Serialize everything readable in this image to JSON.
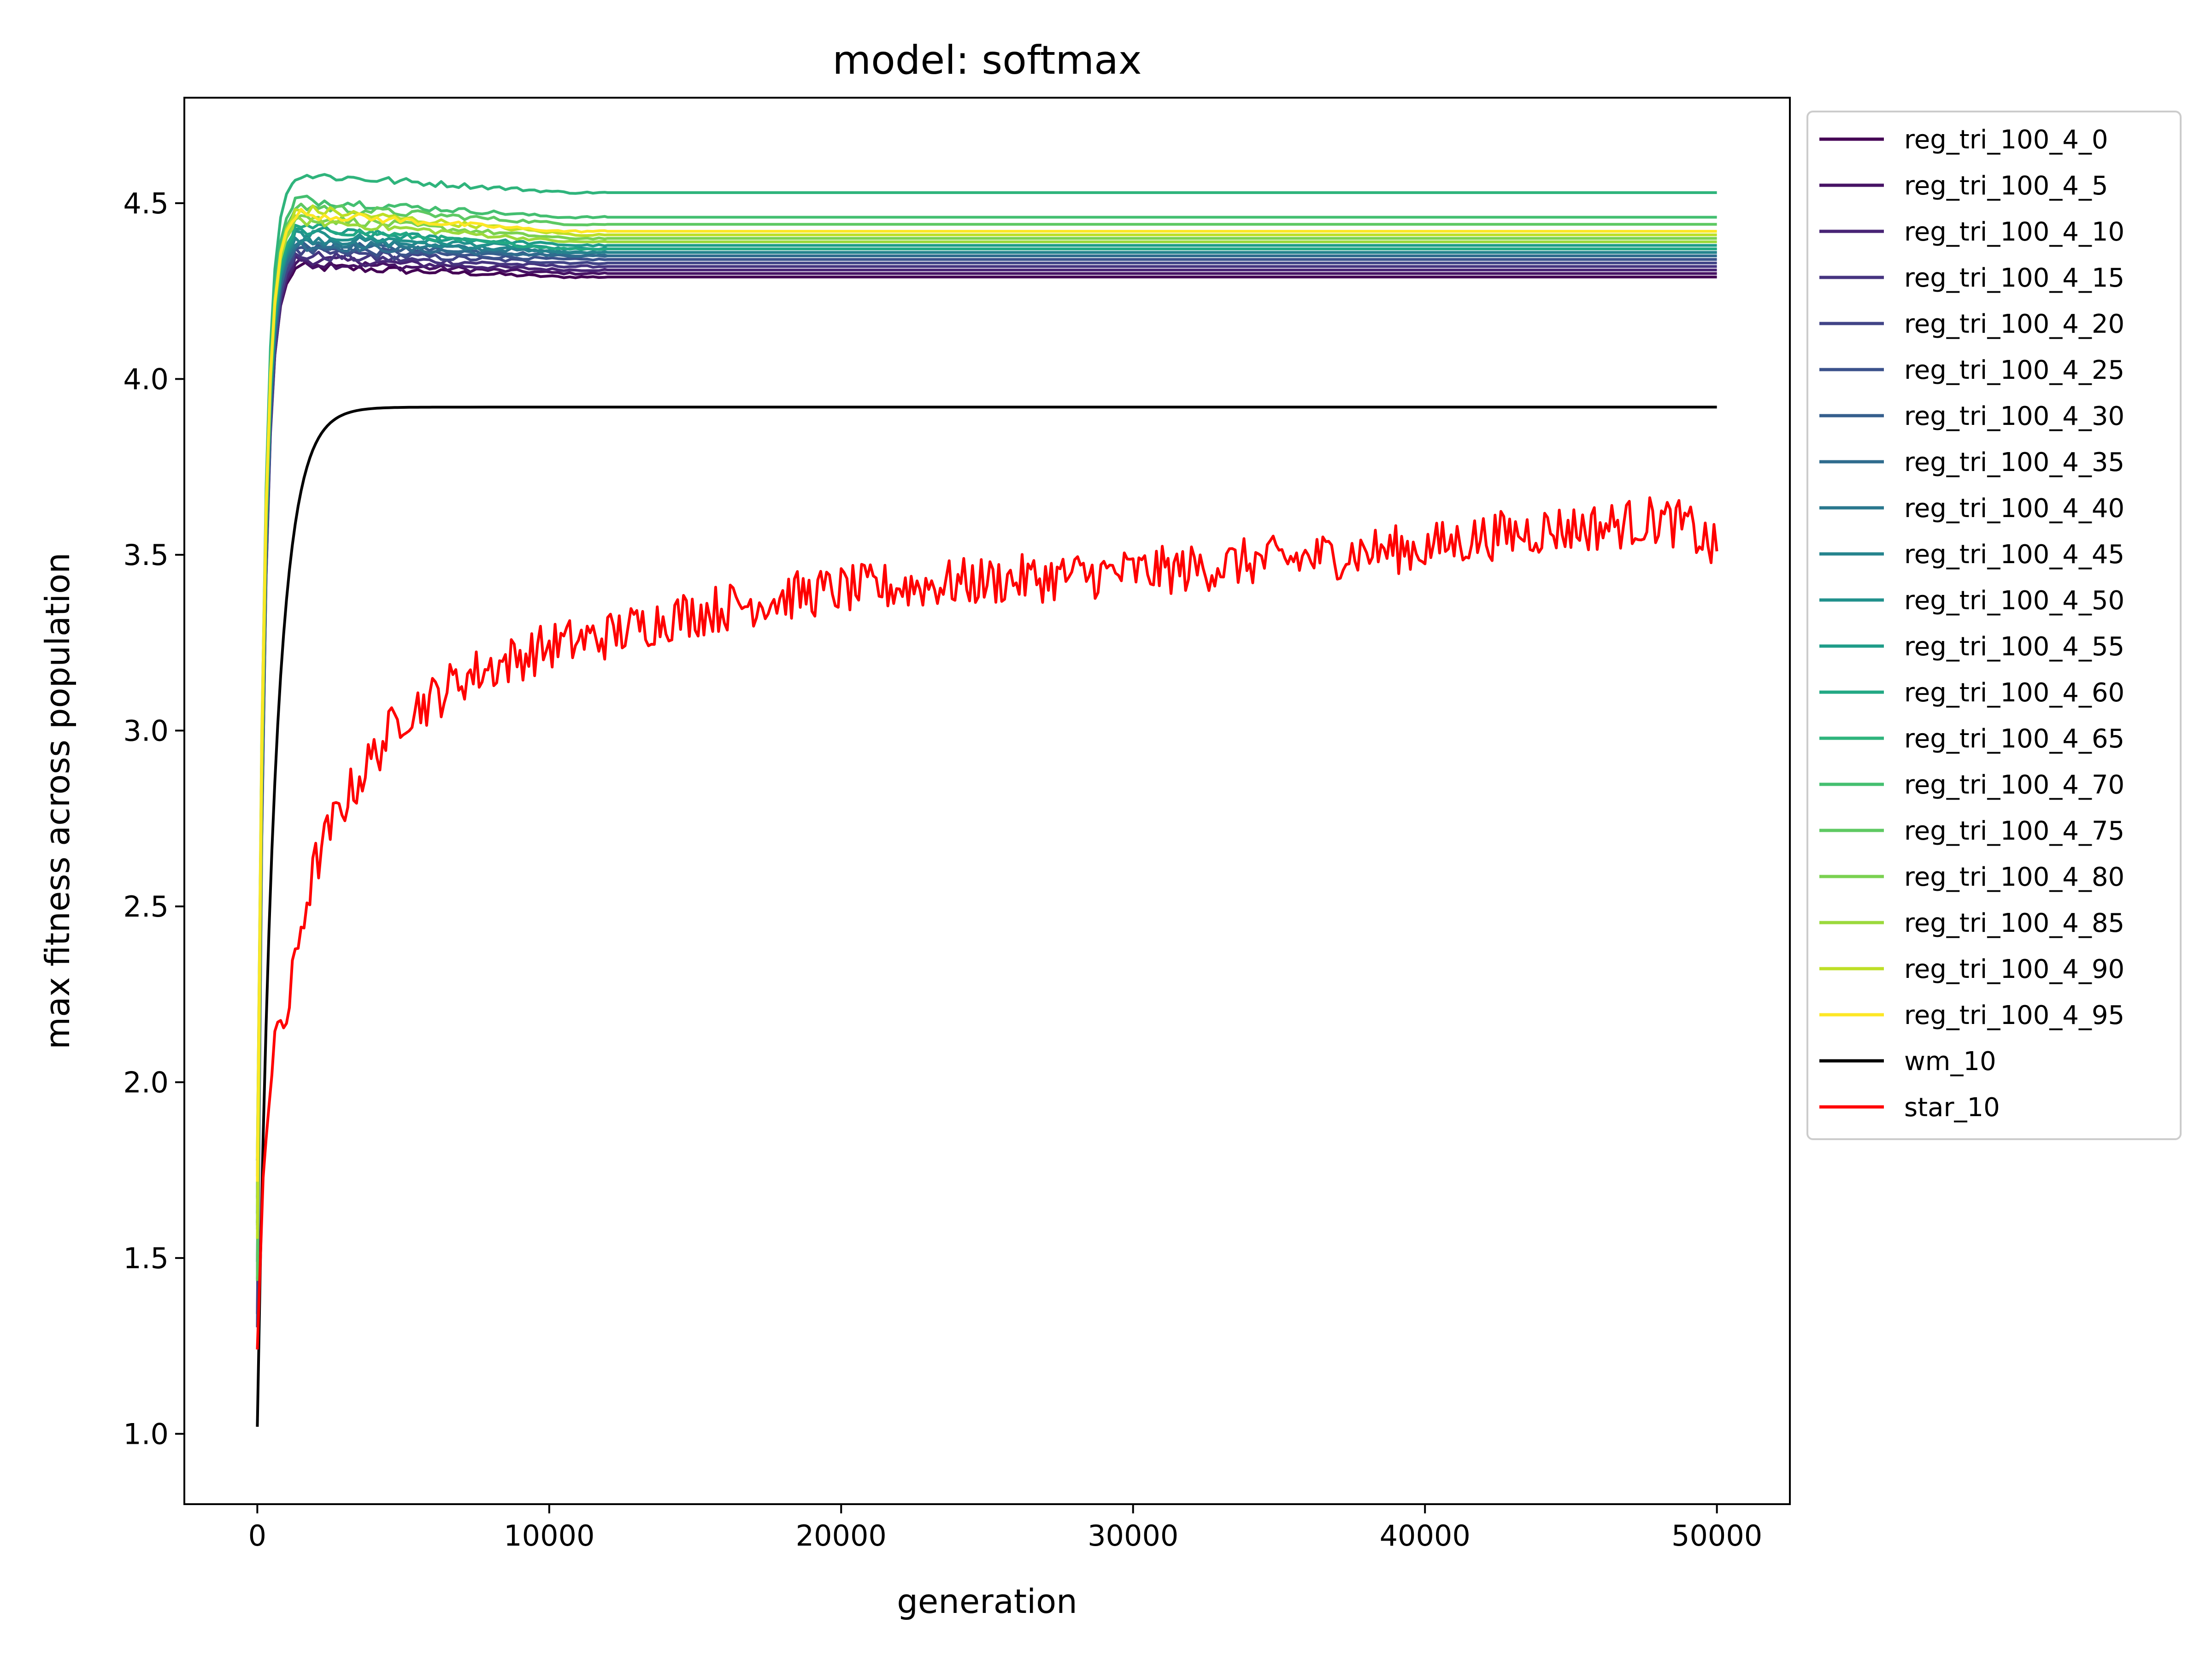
{
  "chart_data": {
    "type": "line",
    "title": "model: softmax",
    "xlabel": "generation",
    "ylabel": "max fitness across population",
    "xlim": [
      -2500,
      52500
    ],
    "ylim": [
      0.8,
      4.8
    ],
    "xticks": [
      0,
      10000,
      20000,
      30000,
      40000,
      50000
    ],
    "xtick_labels": [
      "0",
      "10000",
      "20000",
      "30000",
      "40000",
      "50000"
    ],
    "yticks": [
      1.0,
      1.5,
      2.0,
      2.5,
      3.0,
      3.5,
      4.0,
      4.5
    ],
    "ytick_labels": [
      "1.0",
      "1.5",
      "2.0",
      "2.5",
      "3.0",
      "3.5",
      "4.0",
      "4.5"
    ],
    "grid": false,
    "legend_position": "outside-right",
    "series": [
      {
        "name": "reg_tri_100_4_0",
        "color": "#440154",
        "final": 4.29,
        "peak": 4.32,
        "peak_x": 1500
      },
      {
        "name": "reg_tri_100_4_5",
        "color": "#471365",
        "final": 4.3,
        "peak": 4.33,
        "peak_x": 1800
      },
      {
        "name": "reg_tri_100_4_10",
        "color": "#482475",
        "final": 4.31,
        "peak": 4.34,
        "peak_x": 1600
      },
      {
        "name": "reg_tri_100_4_15",
        "color": "#463480",
        "final": 4.32,
        "peak": 4.35,
        "peak_x": 1700
      },
      {
        "name": "reg_tri_100_4_20",
        "color": "#414487",
        "final": 4.33,
        "peak": 4.36,
        "peak_x": 1900
      },
      {
        "name": "reg_tri_100_4_25",
        "color": "#3b528b",
        "final": 4.34,
        "peak": 4.37,
        "peak_x": 1500
      },
      {
        "name": "reg_tri_100_4_30",
        "color": "#355f8d",
        "final": 4.35,
        "peak": 4.38,
        "peak_x": 2000
      },
      {
        "name": "reg_tri_100_4_35",
        "color": "#2f6c8e",
        "final": 4.35,
        "peak": 4.38,
        "peak_x": 1600
      },
      {
        "name": "reg_tri_100_4_40",
        "color": "#2a788e",
        "final": 4.36,
        "peak": 4.39,
        "peak_x": 1800
      },
      {
        "name": "reg_tri_100_4_45",
        "color": "#25848e",
        "final": 4.36,
        "peak": 4.4,
        "peak_x": 1700
      },
      {
        "name": "reg_tri_100_4_50",
        "color": "#21918c",
        "final": 4.37,
        "peak": 4.41,
        "peak_x": 1500
      },
      {
        "name": "reg_tri_100_4_55",
        "color": "#1e9c89",
        "final": 4.38,
        "peak": 4.42,
        "peak_x": 1900
      },
      {
        "name": "reg_tri_100_4_60",
        "color": "#22a884",
        "final": 4.37,
        "peak": 4.43,
        "peak_x": 1600
      },
      {
        "name": "reg_tri_100_4_65",
        "color": "#2fb47c",
        "final": 4.53,
        "peak": 4.58,
        "peak_x": 1700
      },
      {
        "name": "reg_tri_100_4_70",
        "color": "#44bf70",
        "final": 4.46,
        "peak": 4.51,
        "peak_x": 1500
      },
      {
        "name": "reg_tri_100_4_75",
        "color": "#5ec962",
        "final": 4.44,
        "peak": 4.49,
        "peak_x": 1800
      },
      {
        "name": "reg_tri_100_4_80",
        "color": "#7ad151",
        "final": 4.4,
        "peak": 4.46,
        "peak_x": 1600
      },
      {
        "name": "reg_tri_100_4_85",
        "color": "#9bd93c",
        "final": 4.39,
        "peak": 4.45,
        "peak_x": 1700
      },
      {
        "name": "reg_tri_100_4_90",
        "color": "#bddf26",
        "final": 4.41,
        "peak": 4.48,
        "peak_x": 1900
      },
      {
        "name": "reg_tri_100_4_95",
        "color": "#fde725",
        "final": 4.42,
        "peak": 4.47,
        "peak_x": 1500
      },
      {
        "name": "wm_10",
        "color": "#000000",
        "start": 1.02,
        "final": 3.92
      },
      {
        "name": "star_10",
        "color": "#ff0000",
        "start": 1.24,
        "final": 3.51,
        "x": [
          0,
          250,
          500,
          750,
          1000,
          1500,
          2000,
          2500,
          3000,
          4000,
          5000,
          6000,
          7000,
          8000,
          10000,
          12000,
          14000,
          16000,
          18000,
          20000,
          22000,
          24000,
          26000,
          28000,
          30000,
          32000,
          34000,
          36000,
          38000,
          40000,
          42000,
          44000,
          46000,
          48000,
          49000,
          50000
        ],
        "y": [
          1.24,
          1.85,
          2.0,
          2.2,
          2.17,
          2.45,
          2.62,
          2.72,
          2.8,
          2.93,
          3.05,
          3.09,
          3.15,
          3.18,
          3.24,
          3.27,
          3.32,
          3.35,
          3.38,
          3.4,
          3.41,
          3.42,
          3.43,
          3.44,
          3.45,
          3.46,
          3.48,
          3.49,
          3.51,
          3.52,
          3.55,
          3.57,
          3.58,
          3.6,
          3.58,
          3.51
        ]
      }
    ]
  }
}
